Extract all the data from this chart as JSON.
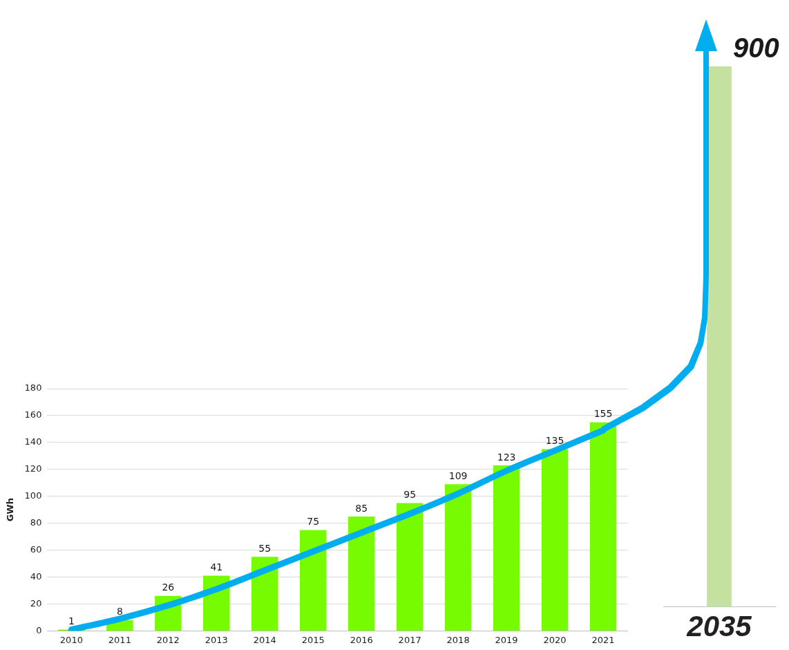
{
  "chart_data": [
    {
      "type": "bar",
      "ylabel": "GWh",
      "categories": [
        "2010",
        "2011",
        "2012",
        "2013",
        "2014",
        "2015",
        "2016",
        "2017",
        "2018",
        "2019",
        "2020",
        "2021"
      ],
      "series": [
        {
          "color": "#77fb00",
          "values": [
            1,
            8,
            26,
            41,
            55,
            75,
            85,
            95,
            109,
            123,
            135,
            155
          ],
          "value_labels": [
            "1",
            "8",
            "26",
            "41",
            "55",
            "75",
            "85",
            "95",
            "109",
            "123",
            "135",
            "155"
          ]
        },
        {
          "type": "line",
          "color": "#00aeef",
          "marker": "none",
          "values": [
            1,
            9,
            19,
            31,
            45,
            59,
            73,
            87,
            102,
            119,
            134,
            149
          ]
        }
      ],
      "ylim": [
        0,
        180
      ],
      "yticks": [
        0,
        20,
        40,
        60,
        80,
        100,
        120,
        140,
        160,
        180
      ],
      "grid": "y"
    },
    {
      "type": "bar",
      "categories": [
        "2035"
      ],
      "values": [
        900
      ],
      "color": "#c5e1a0",
      "tick_labels": "x",
      "data_labels": true
    }
  ]
}
